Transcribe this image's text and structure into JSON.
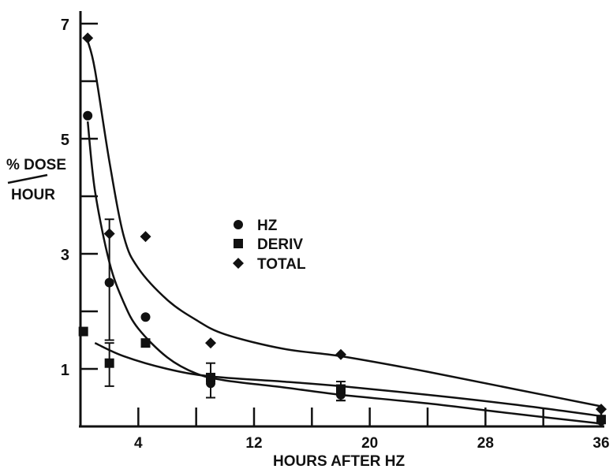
{
  "chart_data": {
    "type": "scatter",
    "xlabel": "HOURS AFTER HZ",
    "ylabel_numerator": "% DOSE",
    "ylabel_denominator": "HOUR",
    "xlim": [
      0,
      36
    ],
    "ylim": [
      0,
      7
    ],
    "x_ticks": [
      "4",
      "12",
      "20",
      "28",
      "36"
    ],
    "y_ticks": [
      "1",
      "3",
      "5",
      "7"
    ],
    "legend_position": "center",
    "series": [
      {
        "name": "HZ",
        "marker": "circle",
        "points": [
          [
            0.5,
            5.4
          ],
          [
            2,
            2.5
          ],
          [
            4.5,
            1.9
          ],
          [
            9,
            0.75
          ],
          [
            18,
            0.55
          ],
          [
            36,
            0.1
          ]
        ],
        "fit_curve": [
          [
            0.5,
            5.3
          ],
          [
            1,
            4.1
          ],
          [
            2,
            2.85
          ],
          [
            3,
            2.15
          ],
          [
            4,
            1.7
          ],
          [
            6,
            1.2
          ],
          [
            8,
            0.92
          ],
          [
            10,
            0.8
          ],
          [
            14,
            0.68
          ],
          [
            18,
            0.55
          ],
          [
            24,
            0.4
          ],
          [
            30,
            0.22
          ],
          [
            36,
            0.05
          ]
        ],
        "error_bars": [
          [
            2,
            1.5,
            3.6
          ],
          [
            9,
            0.5,
            1.1
          ],
          [
            18,
            0.45,
            0.7
          ]
        ]
      },
      {
        "name": "DERIV",
        "marker": "square",
        "points": [
          [
            0.2,
            1.65
          ],
          [
            2,
            1.1
          ],
          [
            4.5,
            1.45
          ],
          [
            9,
            0.85
          ],
          [
            18,
            0.65
          ],
          [
            36,
            0.12
          ]
        ],
        "fit_curve": [
          [
            1,
            1.45
          ],
          [
            3,
            1.22
          ],
          [
            6,
            1.0
          ],
          [
            9,
            0.87
          ],
          [
            14,
            0.78
          ],
          [
            18,
            0.7
          ],
          [
            24,
            0.55
          ],
          [
            30,
            0.38
          ],
          [
            36,
            0.18
          ]
        ],
        "error_bars": [
          [
            2,
            0.7,
            1.45
          ],
          [
            18,
            0.45,
            0.78
          ]
        ]
      },
      {
        "name": "TOTAL",
        "marker": "diamond",
        "points": [
          [
            0.5,
            6.75
          ],
          [
            2,
            3.35
          ],
          [
            4.5,
            3.3
          ],
          [
            9,
            1.45
          ],
          [
            18,
            1.25
          ],
          [
            36,
            0.3
          ]
        ],
        "fit_curve": [
          [
            0.5,
            6.7
          ],
          [
            1,
            6.2
          ],
          [
            2,
            4.6
          ],
          [
            3,
            3.3
          ],
          [
            4,
            2.75
          ],
          [
            6,
            2.2
          ],
          [
            8,
            1.85
          ],
          [
            10,
            1.6
          ],
          [
            14,
            1.35
          ],
          [
            18,
            1.22
          ],
          [
            24,
            0.95
          ],
          [
            30,
            0.65
          ],
          [
            36,
            0.35
          ]
        ]
      }
    ]
  }
}
